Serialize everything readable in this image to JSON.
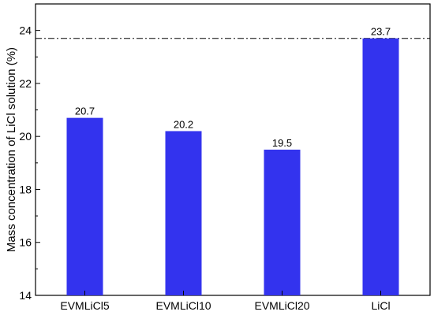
{
  "chart_data": {
    "type": "bar",
    "title": "",
    "xlabel": "",
    "ylabel": "Mass concentration of LiCl solution (%)",
    "categories": [
      "EVMLiCl5",
      "EVMLiCl10",
      "EVMLiCl20",
      "LiCl"
    ],
    "values": [
      20.7,
      20.2,
      19.5,
      23.7
    ],
    "data_labels": [
      "20.7",
      "20.2",
      "19.5",
      "23.7"
    ],
    "ylim": [
      14,
      25
    ],
    "yticks": [
      14,
      16,
      18,
      20,
      22,
      24
    ],
    "reference_line": {
      "value": 23.7,
      "style": "dash-dot"
    },
    "bar_color": "#3333ee",
    "grid": false,
    "legend": "none"
  }
}
